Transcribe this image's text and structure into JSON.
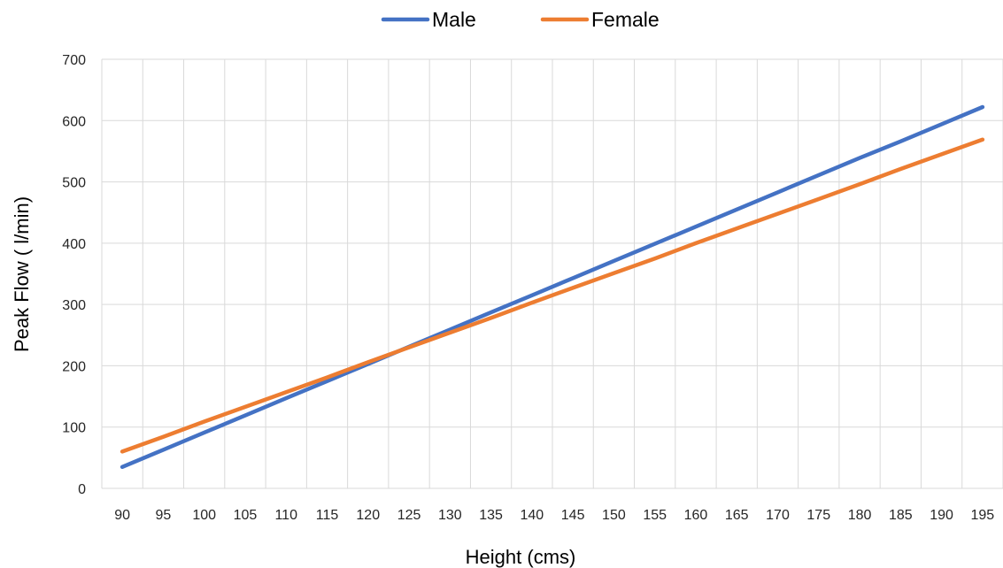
{
  "chart_data": {
    "type": "line",
    "title": "",
    "xlabel": "Height (cms)",
    "ylabel": "Peak Flow ( l/min)",
    "x": [
      90,
      95,
      100,
      105,
      110,
      115,
      120,
      125,
      130,
      135,
      140,
      145,
      150,
      155,
      160,
      165,
      170,
      175,
      180,
      185,
      190,
      195
    ],
    "ylim": [
      0,
      700
    ],
    "yticks": [
      0,
      100,
      200,
      300,
      400,
      500,
      600,
      700
    ],
    "grid": true,
    "legend_position": "top",
    "series": [
      {
        "name": "Male",
        "color": "#4472C4",
        "values": [
          35,
          63,
          91,
          119,
          147,
          175,
          203,
          231,
          259,
          287,
          315,
          343,
          371,
          399,
          427,
          455,
          483,
          511,
          539,
          566,
          594,
          622
        ]
      },
      {
        "name": "Female",
        "color": "#ED7D31",
        "values": [
          60,
          84,
          109,
          133,
          157,
          181,
          206,
          230,
          254,
          278,
          303,
          327,
          351,
          375,
          400,
          424,
          448,
          472,
          496,
          521,
          545,
          569
        ]
      }
    ]
  }
}
